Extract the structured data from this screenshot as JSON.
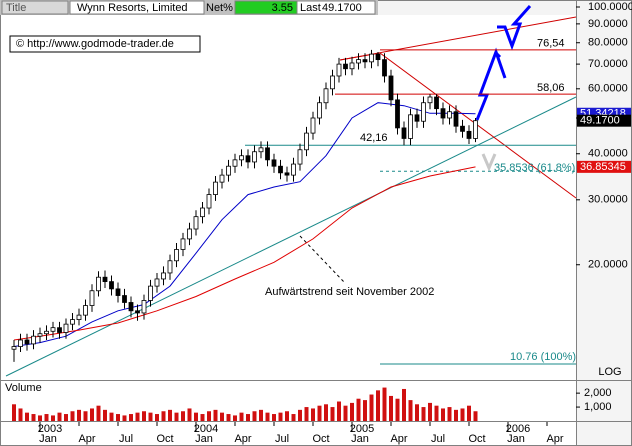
{
  "header": {
    "title_label": "Title",
    "name": "Wynn Resorts, Limited",
    "net_label": "Net%",
    "net_value": "3.55",
    "last_label": "Last",
    "last_value": "49.1700"
  },
  "copyright": "© http://www.godmode-trader.de",
  "chart_data": {
    "type": "candlestick",
    "log_scale": true,
    "scale_label": "LOG",
    "x": [
      -2,
      -1.5,
      -1,
      -0.5,
      0,
      0.5,
      1,
      1.5,
      2,
      2.5,
      3,
      3.5,
      4,
      4.5,
      5,
      5.5,
      6,
      6.5,
      7,
      7.5,
      8,
      8.5,
      9,
      9.5,
      10,
      10.5,
      11,
      11.5,
      12,
      12.5,
      13,
      13.5,
      14,
      14.5,
      15,
      15.5,
      16,
      16.5,
      17,
      17.5,
      18,
      18.5,
      19,
      19.5,
      20,
      20.5,
      21,
      21.5,
      22,
      22.5,
      23,
      23.5,
      24,
      24.5,
      25,
      25.5,
      26,
      26.5,
      27,
      27.5,
      28,
      28.5,
      29,
      29.5,
      30,
      30.5,
      31,
      31.5,
      32,
      32.5,
      33,
      33.5
    ],
    "open": [
      11.8,
      12.0,
      12.5,
      12.2,
      12.8,
      13.0,
      13.2,
      13.5,
      13.1,
      13.8,
      14.2,
      14.6,
      15.5,
      17.0,
      18.5,
      18.0,
      17.2,
      16.5,
      15.8,
      15.0,
      14.8,
      16.0,
      17.5,
      18.3,
      19.0,
      20.5,
      22.0,
      23.5,
      25.0,
      27.0,
      28.5,
      31.0,
      33.5,
      35.0,
      37.0,
      38.5,
      39.5,
      38.0,
      40.5,
      41.5,
      38.5,
      37.0,
      35.5,
      35.0,
      37.5,
      41.0,
      45.5,
      50.0,
      55.0,
      60.0,
      65.0,
      70.0,
      68.0,
      70.5,
      72.0,
      71.0,
      74.5,
      72.0,
      65.0,
      56.0,
      47.0,
      44.0,
      51.0,
      49.0,
      55.0,
      57.0,
      53.0,
      50.0,
      52.0,
      47.5,
      46.0,
      44.0
    ],
    "high": [
      12.5,
      13.0,
      13.0,
      13.3,
      13.5,
      13.7,
      14.0,
      14.0,
      14.3,
      14.8,
      15.2,
      16.1,
      17.7,
      19.2,
      19.3,
      18.7,
      17.9,
      17.2,
      16.4,
      15.6,
      16.6,
      18.2,
      19.0,
      19.8,
      21.3,
      22.9,
      24.4,
      26.0,
      28.1,
      29.6,
      32.2,
      34.8,
      36.4,
      38.5,
      40.0,
      41.1,
      41.1,
      42.1,
      43.2,
      43.2,
      40.0,
      38.5,
      36.9,
      39.0,
      42.6,
      47.3,
      52.0,
      57.2,
      62.4,
      67.6,
      72.8,
      72.8,
      73.3,
      74.9,
      74.9,
      76.54,
      75.5,
      74.9,
      67.6,
      58.2,
      48.9,
      53.0,
      53.0,
      57.2,
      58.06,
      58.0,
      55.1,
      54.1,
      54.1,
      49.4,
      47.8,
      50.0
    ],
    "low": [
      10.9,
      11.6,
      11.7,
      11.8,
      12.3,
      12.5,
      12.7,
      12.6,
      12.6,
      13.3,
      13.7,
      14.1,
      14.9,
      16.4,
      17.3,
      16.5,
      15.8,
      15.2,
      14.4,
      14.1,
      14.2,
      15.4,
      16.8,
      17.6,
      18.2,
      19.7,
      21.1,
      22.6,
      24.0,
      25.9,
      27.4,
      29.8,
      32.2,
      33.6,
      35.5,
      37.0,
      36.5,
      36.5,
      38.9,
      37.0,
      35.5,
      34.1,
      33.6,
      33.6,
      36.0,
      39.4,
      43.7,
      48.0,
      52.8,
      57.6,
      62.4,
      65.3,
      65.3,
      67.7,
      68.2,
      68.2,
      69.1,
      62.4,
      53.8,
      45.1,
      42.16,
      42.2,
      47.0,
      47.0,
      52.8,
      50.9,
      48.0,
      48.0,
      45.6,
      44.2,
      42.5,
      43.0
    ],
    "close": [
      12.0,
      12.5,
      12.2,
      12.8,
      13.0,
      13.2,
      13.5,
      13.1,
      13.8,
      14.2,
      14.6,
      15.5,
      17.0,
      18.5,
      18.0,
      17.2,
      16.5,
      15.8,
      15.0,
      14.8,
      16.0,
      17.5,
      18.3,
      19.0,
      20.5,
      22.0,
      23.5,
      25.0,
      27.0,
      28.5,
      31.0,
      33.5,
      35.0,
      37.0,
      38.5,
      39.5,
      38.0,
      40.5,
      41.5,
      38.5,
      37.0,
      35.5,
      35.0,
      37.5,
      41.0,
      45.5,
      50.0,
      55.0,
      60.0,
      65.0,
      70.0,
      68.0,
      70.5,
      72.0,
      71.0,
      74.5,
      72.0,
      65.0,
      56.0,
      47.0,
      44.0,
      51.0,
      49.0,
      55.0,
      57.0,
      53.0,
      50.0,
      52.0,
      47.5,
      46.0,
      44.0,
      49.17
    ],
    "volume": [
      1200,
      900,
      600,
      500,
      400,
      500,
      400,
      600,
      500,
      700,
      800,
      700,
      900,
      1100,
      800,
      600,
      500,
      400,
      500,
      600,
      700,
      600,
      500,
      700,
      800,
      600,
      700,
      900,
      600,
      500,
      700,
      800,
      600,
      500,
      400,
      600,
      500,
      700,
      800,
      600,
      500,
      600,
      700,
      500,
      800,
      1000,
      900,
      1100,
      1200,
      1000,
      1400,
      1100,
      1300,
      1600,
      1500,
      1900,
      2200,
      2400,
      1800,
      1600,
      2300,
      1500,
      1200,
      1000,
      1300,
      1100,
      900,
      1000,
      800,
      900,
      1100,
      700
    ],
    "volume_label": "Volume",
    "overlays": [
      {
        "color": "#0000c8",
        "x": [
          -2,
          0,
          2,
          4,
          6,
          8,
          10,
          12,
          14,
          16,
          18,
          20,
          22,
          24,
          26,
          28,
          30,
          32,
          33.5
        ],
        "values": [
          12.0,
          12.3,
          12.8,
          14.0,
          15.0,
          15.6,
          17.5,
          21.5,
          26.5,
          31.0,
          32.5,
          33.6,
          39.5,
          50.0,
          55.0,
          54.0,
          51.5,
          51.5,
          51.34
        ]
      },
      {
        "color": "#e00000",
        "x": [
          -2,
          0,
          3,
          6,
          9,
          12,
          15,
          18,
          21,
          24,
          27,
          30,
          33.5
        ],
        "values": [
          12.5,
          12.8,
          13.3,
          13.9,
          15.0,
          16.4,
          18.3,
          20.3,
          23.5,
          28.5,
          32.5,
          34.8,
          36.85
        ]
      }
    ],
    "ylim": [
      10.3,
      100
    ],
    "yticks": [
      {
        "value": 100,
        "label": "100.0000"
      },
      {
        "value": 90,
        "label": "90.0000"
      },
      {
        "value": 80,
        "label": "80.0000"
      },
      {
        "value": 70,
        "label": "70.0000"
      },
      {
        "value": 60,
        "label": "60.0000"
      },
      {
        "value": 50,
        "label": "50.0000"
      },
      {
        "value": 40,
        "label": "40.0000"
      },
      {
        "value": 30,
        "label": "30.0000"
      },
      {
        "value": 20,
        "label": "20.0000"
      }
    ],
    "price_labels": [
      {
        "value": 51.34218,
        "label": "51.34218",
        "color": "#1a1ad0"
      },
      {
        "value": 49.17,
        "label": "49.1700",
        "color": "#000000"
      },
      {
        "value": 36.85345,
        "label": "36.85345",
        "color": "#e01010"
      }
    ],
    "vlim": [
      0,
      2800
    ],
    "vticks": [
      {
        "value": 2000,
        "label": "2,000"
      },
      {
        "value": 1000,
        "label": "1,000"
      }
    ],
    "xlim": [
      -3,
      41.5
    ],
    "xticks": [
      {
        "value": 0,
        "label": "Jan"
      },
      {
        "value": 3,
        "label": "Apr"
      },
      {
        "value": 6,
        "label": "Jul"
      },
      {
        "value": 9,
        "label": "Oct"
      },
      {
        "value": 12,
        "label": "Jan"
      },
      {
        "value": 15,
        "label": "Apr"
      },
      {
        "value": 18,
        "label": "Jul"
      },
      {
        "value": 21,
        "label": "Oct"
      },
      {
        "value": 24,
        "label": "Jan"
      },
      {
        "value": 27,
        "label": "Apr"
      },
      {
        "value": 30,
        "label": "Jul"
      },
      {
        "value": 33,
        "label": "Oct"
      },
      {
        "value": 36,
        "label": "Jan"
      },
      {
        "value": 39,
        "label": "Apr"
      }
    ],
    "year_ticks": [
      {
        "value": 0,
        "label": "2003"
      },
      {
        "value": 12,
        "label": "2004"
      },
      {
        "value": 24,
        "label": "2005"
      },
      {
        "value": 36,
        "label": "2006"
      }
    ],
    "levels": [
      {
        "value": 76.54,
        "label": "76,54",
        "color": "#d00000"
      },
      {
        "value": 58.06,
        "label": "58,06",
        "color": "#d00000"
      },
      {
        "value": 42.16,
        "label": "42,16",
        "color": "#1a8a8a"
      },
      {
        "value": 35.8536,
        "label": "35.8536 (61.8%)",
        "color": "#1a8a8a"
      },
      {
        "value": 10.76,
        "label": "10.76 (100%)",
        "color": "#1a8a8a"
      }
    ],
    "annotation": "Aufwärtstrend seit November 2002"
  }
}
